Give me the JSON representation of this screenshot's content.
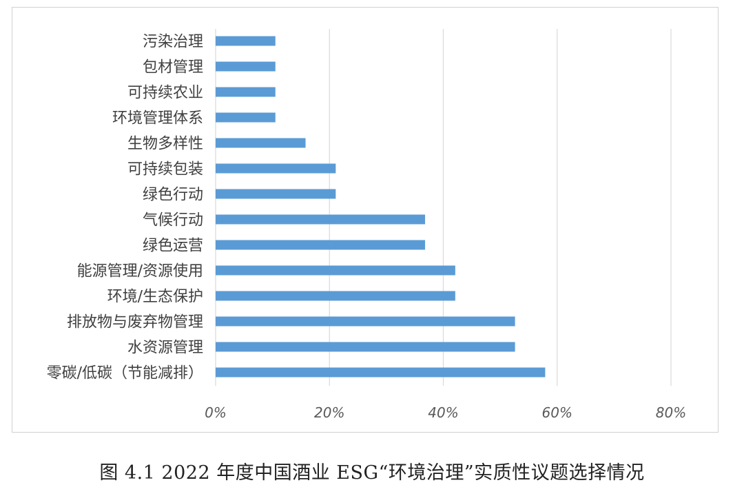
{
  "caption": "图 4.1 2022 年度中国酒业 ESG“环境治理”实质性议题选择情况",
  "colors": {
    "bar": "#5b9bd5",
    "grid": "#d9d9d9",
    "label": "#404040",
    "tick": "#595959"
  },
  "chart_data": {
    "type": "bar",
    "orientation": "horizontal",
    "title": "",
    "xlabel": "",
    "ylabel": "",
    "xlim": [
      0,
      0.8
    ],
    "x_tick_values": [
      0,
      0.2,
      0.4,
      0.6,
      0.8
    ],
    "x_ticks": [
      "0%",
      "20%",
      "40%",
      "60%",
      "80%"
    ],
    "grid": "vertical",
    "legend": "none",
    "categories": [
      "污染治理",
      "包材管理",
      "可持续农业",
      "环境管理体系",
      "生物多样性",
      "可持续包装",
      "绿色行动",
      "气候行动",
      "绿色运营",
      "能源管理/资源使用",
      "环境/生态保护",
      "排放物与废弃物管理",
      "水资源管理",
      "零碳/低碳（节能减排）"
    ],
    "values": [
      0.105,
      0.105,
      0.105,
      0.105,
      0.158,
      0.211,
      0.211,
      0.368,
      0.368,
      0.421,
      0.421,
      0.526,
      0.526,
      0.579
    ]
  }
}
